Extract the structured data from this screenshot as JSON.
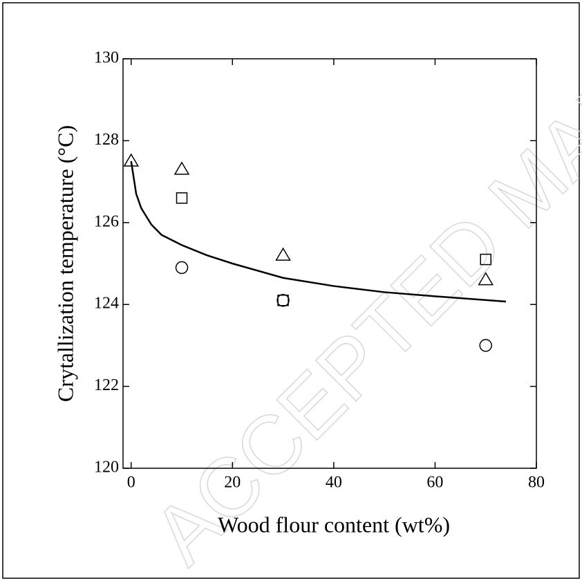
{
  "chart_data": {
    "type": "scatter",
    "watermark": "ACCEPTED MANUSCRIPT",
    "xlabel": "Wood flour content (wt%)",
    "ylabel": "Crytallization temperature (°C)",
    "xlim": [
      -1.6,
      80
    ],
    "ylim": [
      120,
      130
    ],
    "xticks": [
      0,
      20,
      40,
      60,
      80
    ],
    "yticks": [
      120,
      122,
      124,
      126,
      128,
      130
    ],
    "series": [
      {
        "marker": "triangle",
        "color": "#000000",
        "x": [
          0,
          10,
          30,
          70
        ],
        "values": [
          127.5,
          127.3,
          125.2,
          124.6
        ]
      },
      {
        "marker": "square",
        "color": "#000000",
        "x": [
          10,
          30,
          70
        ],
        "values": [
          126.6,
          124.1,
          125.1
        ]
      },
      {
        "marker": "circle",
        "color": "#000000",
        "x": [
          10,
          30,
          70
        ],
        "values": [
          124.9,
          124.1,
          123.0
        ]
      }
    ],
    "fit": {
      "color": "#000000",
      "x": [
        0,
        1,
        2,
        4,
        6,
        10,
        15,
        20,
        30,
        40,
        50,
        60,
        74
      ],
      "values": [
        127.5,
        126.7,
        126.35,
        125.95,
        125.7,
        125.45,
        125.2,
        125.0,
        124.65,
        124.45,
        124.3,
        124.2,
        124.07
      ]
    }
  }
}
